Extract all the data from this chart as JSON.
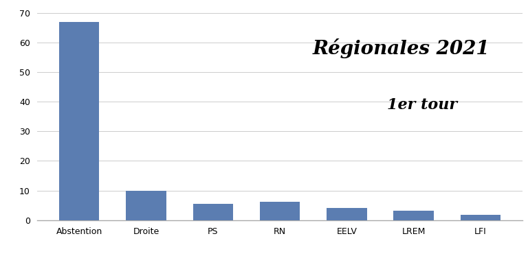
{
  "categories": [
    "Abstention",
    "Droite",
    "PS",
    "RN",
    "EELV",
    "LREM",
    "LFI"
  ],
  "values": [
    67.0,
    9.8,
    5.5,
    6.3,
    4.2,
    3.3,
    1.8
  ],
  "bar_color": "#5b7db1",
  "background_color": "#ffffff",
  "ylim": [
    0,
    70
  ],
  "yticks": [
    0,
    10,
    20,
    30,
    40,
    50,
    60,
    70
  ],
  "title_line1": "Régionales 2021",
  "title_line2": "1er tour",
  "title_fontsize": 20,
  "subtitle_fontsize": 16,
  "grid_color": "#cccccc",
  "tick_fontsize": 9,
  "xlabel_fontsize": 9
}
